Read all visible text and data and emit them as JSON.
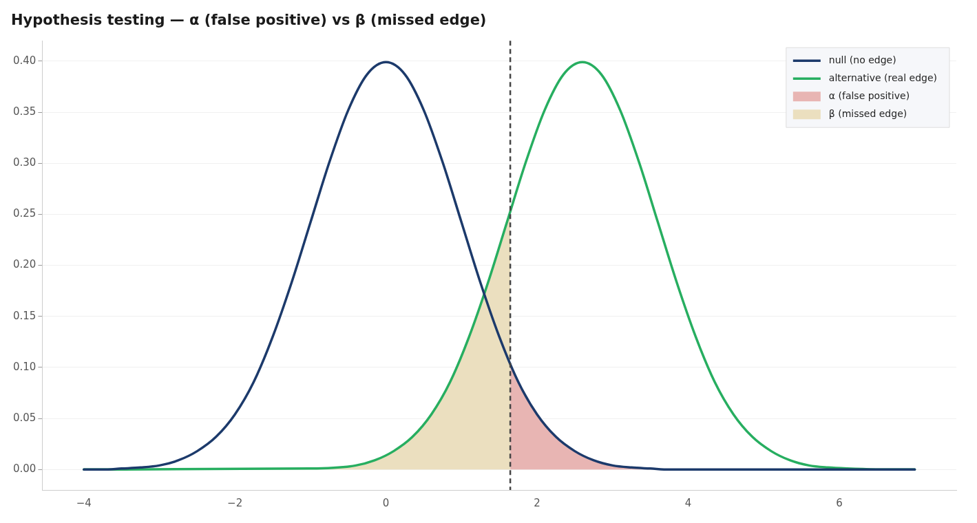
{
  "chart_data": {
    "type": "line",
    "title": "Hypothesis testing — α (false positive) vs β (missed edge)",
    "xlim": [
      -4.55,
      7.55
    ],
    "xticks": [
      {
        "value": -4,
        "label": "−4"
      },
      {
        "value": -2,
        "label": "−2"
      },
      0,
      2,
      4,
      6
    ],
    "ylim": [
      -0.02,
      0.42
    ],
    "yticks": [
      {
        "value": 0,
        "label": "0.00"
      },
      {
        "value": 0.05,
        "label": "0.05"
      },
      {
        "value": 0.1,
        "label": "0.10"
      },
      {
        "value": 0.15,
        "label": "0.15"
      },
      {
        "value": 0.2,
        "label": "0.20"
      },
      {
        "value": 0.25,
        "label": "0.25"
      },
      {
        "value": 0.3,
        "label": "0.30"
      },
      {
        "value": 0.35,
        "label": "0.35"
      },
      {
        "value": 0.4,
        "label": "0.40"
      }
    ],
    "grid": "y",
    "legend": "top right",
    "marker": "none",
    "line_style": "solid",
    "ref_lines": [
      {
        "axis": "x",
        "value": 1.645,
        "color": "#444444",
        "line_style": "dashed"
      }
    ],
    "series": [
      {
        "name": "null (no edge)",
        "color": "#1c3a6b",
        "x": [
          -4,
          -3.75,
          -3.5,
          -3.25,
          -3,
          -2.75,
          -2.5,
          -2.25,
          -2,
          -1.75,
          -1.5,
          -1.25,
          -1,
          -0.75,
          -0.5,
          -0.25,
          0,
          0.25,
          0.5,
          0.75,
          1,
          1.25,
          1.5,
          1.75,
          2,
          2.25,
          2.5,
          2.75,
          3,
          3.25,
          3.5,
          3.75,
          4,
          5,
          6,
          7
        ],
        "values": [
          0,
          0,
          0.001,
          0.002,
          0.004,
          0.009,
          0.018,
          0.032,
          0.054,
          0.086,
          0.13,
          0.183,
          0.242,
          0.301,
          0.352,
          0.387,
          0.399,
          0.387,
          0.352,
          0.301,
          0.242,
          0.183,
          0.13,
          0.086,
          0.054,
          0.032,
          0.018,
          0.009,
          0.004,
          0.002,
          0.001,
          0,
          0,
          0,
          0,
          0
        ]
      },
      {
        "name": "alternative (real edge)",
        "color": "#27ae60",
        "x": [
          -4,
          -1,
          -0.4,
          -0.15,
          0.1,
          0.35,
          0.6,
          0.85,
          1.1,
          1.35,
          1.6,
          1.85,
          2.1,
          2.35,
          2.6,
          2.85,
          3.1,
          3.35,
          3.6,
          3.85,
          4.1,
          4.35,
          4.6,
          4.85,
          5.1,
          5.35,
          5.6,
          5.85,
          6.1,
          6.6,
          7
        ],
        "values": [
          0,
          0.001,
          0.004,
          0.009,
          0.018,
          0.032,
          0.054,
          0.086,
          0.13,
          0.183,
          0.242,
          0.301,
          0.352,
          0.387,
          0.399,
          0.387,
          0.352,
          0.301,
          0.242,
          0.183,
          0.13,
          0.086,
          0.054,
          0.032,
          0.018,
          0.009,
          0.004,
          0.002,
          0.001,
          0,
          0
        ]
      },
      {
        "name": "α (false positive)",
        "type": "area",
        "color": "#e8b5b3",
        "x": [
          1.645,
          1.75,
          2,
          2.25,
          2.5,
          2.75,
          3,
          3.25,
          3.5,
          4,
          5,
          6,
          7
        ],
        "values": [
          0.103,
          0.086,
          0.054,
          0.032,
          0.018,
          0.009,
          0.004,
          0.002,
          0.001,
          0,
          0,
          0,
          0
        ]
      },
      {
        "name": "β (missed edge)",
        "type": "area",
        "color": "#ebdfbf",
        "x": [
          -4,
          -1,
          -0.4,
          -0.15,
          0.1,
          0.35,
          0.6,
          0.85,
          1.1,
          1.35,
          1.6,
          1.645
        ],
        "values": [
          0,
          0.001,
          0.004,
          0.009,
          0.018,
          0.032,
          0.054,
          0.086,
          0.13,
          0.183,
          0.242,
          0.253
        ]
      }
    ]
  }
}
